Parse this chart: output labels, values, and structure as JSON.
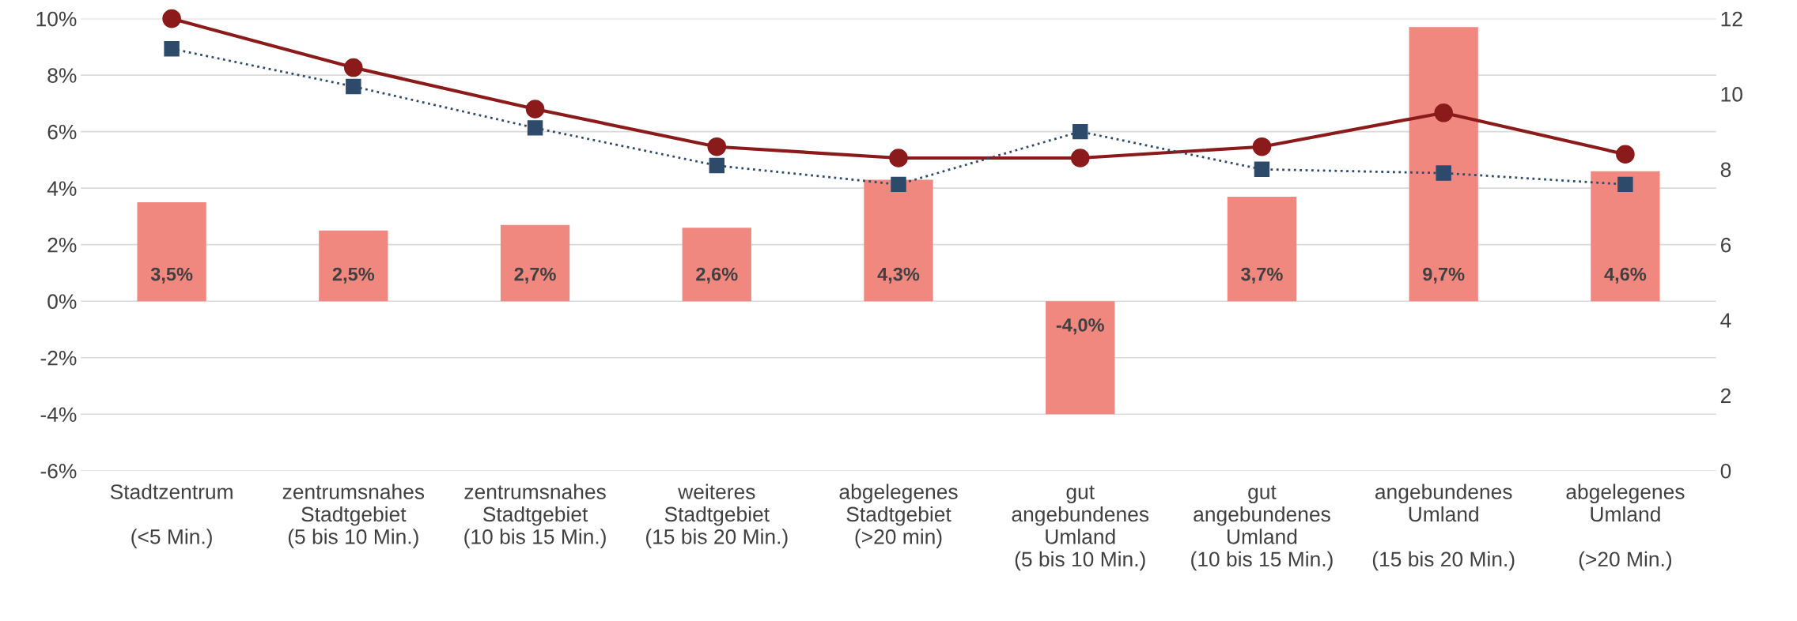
{
  "chart_data": {
    "type": "bar",
    "categories": [
      "Stadtzentrum\n\n(<5 Min.)",
      "zentrumsnahes\nStadtgebiet\n(5 bis 10 Min.)",
      "zentrumsnahes\nStadtgebiet\n(10 bis 15 Min.)",
      "weiteres\nStadtgebiet\n(15 bis 20 Min.)",
      "abgelegenes\nStadtgebiet\n(>20 min)",
      "gut\nangebundenes\nUmland\n(5 bis 10 Min.)",
      "gut\nangebundenes\nUmland\n(10 bis 15 Min.)",
      "angebundenes\nUmland\n\n(15 bis 20 Min.)",
      "abgelegenes\nUmland\n\n(>20 Min.)"
    ],
    "series": [
      {
        "color": "#f08880",
        "values": [
          3.5,
          2.5,
          2.7,
          2.6,
          4.3,
          -4.0,
          3.7,
          9.7,
          4.6
        ],
        "value_labels": [
          "3,5%",
          "2,5%",
          "2,7%",
          "2,6%",
          "4,3%",
          "-4,0%",
          "3,7%",
          "9,7%",
          "4,6%"
        ]
      },
      {
        "type": "line",
        "axis": "y2",
        "color": "#8b1a1a",
        "marker": "circle",
        "line_style": "solid",
        "values": [
          12.0,
          10.7,
          9.6,
          8.6,
          8.3,
          8.3,
          8.6,
          9.5,
          8.4
        ]
      },
      {
        "type": "line",
        "axis": "y2",
        "color": "#2e4a6b",
        "marker": "square",
        "line_style": "dotted",
        "values": [
          11.2,
          10.2,
          9.1,
          8.1,
          7.6,
          9.0,
          8.0,
          7.9,
          7.6
        ]
      }
    ],
    "ylim": [
      -6,
      10
    ],
    "yticks": [
      {
        "value": -6,
        "label": "-6%"
      },
      {
        "value": -4,
        "label": "-4%"
      },
      {
        "value": -2,
        "label": "-2%"
      },
      {
        "value": 0,
        "label": "0%"
      },
      {
        "value": 2,
        "label": "2%"
      },
      {
        "value": 4,
        "label": "4%"
      },
      {
        "value": 6,
        "label": "6%"
      },
      {
        "value": 8,
        "label": "8%"
      },
      {
        "value": 10,
        "label": "10%"
      }
    ],
    "y2lim": [
      0,
      12
    ],
    "y2ticks": [
      0,
      2,
      4,
      6,
      8,
      10,
      12
    ],
    "grid": "y",
    "legend": false
  }
}
